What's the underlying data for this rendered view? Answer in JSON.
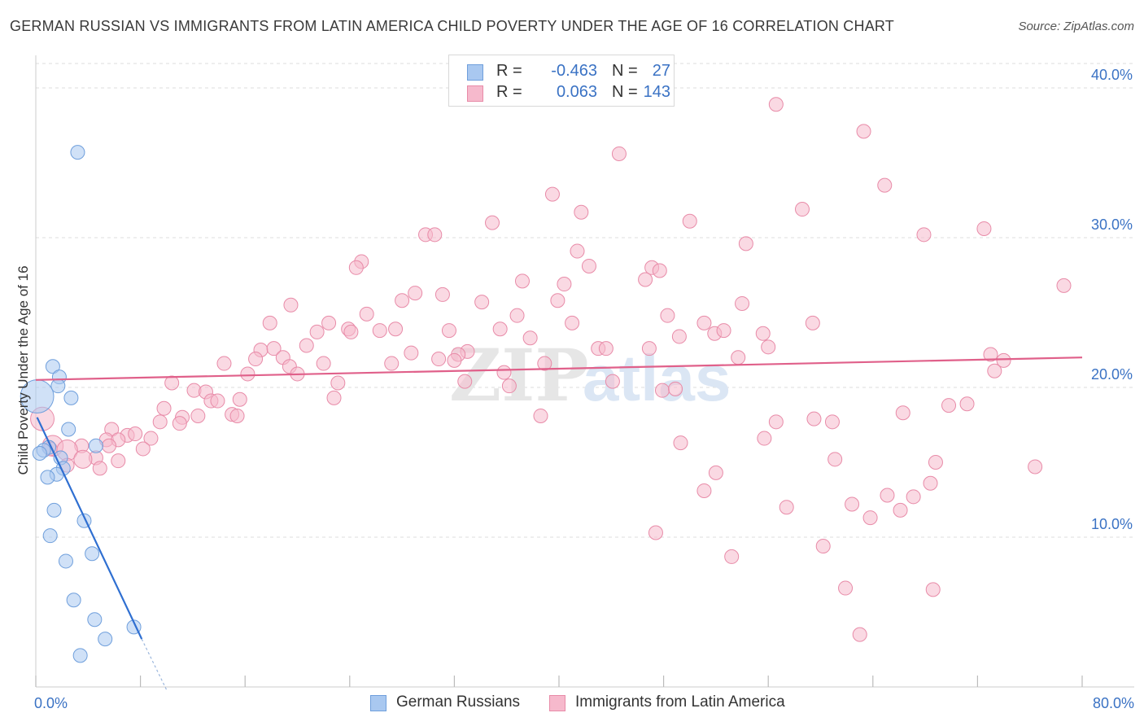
{
  "title": "GERMAN RUSSIAN VS IMMIGRANTS FROM LATIN AMERICA CHILD POVERTY UNDER THE AGE OF 16 CORRELATION CHART",
  "source": "Source: ZipAtlas.com",
  "watermark": {
    "part1": "ZIP",
    "part2": "atlas"
  },
  "colors": {
    "blue_fill": "#a9c8f0",
    "blue_stroke": "#6f9fdc",
    "blue_line": "#2f6fd1",
    "pink_fill": "#f6b9cc",
    "pink_stroke": "#e88ba8",
    "pink_line": "#e0608a",
    "axis_label": "#3a72c4",
    "grid": "#dddddd"
  },
  "legend": {
    "rows": [
      {
        "r_label": "R =",
        "r_value": "-0.463",
        "n_label": "N =",
        "n_value": "27",
        "series": "blue"
      },
      {
        "r_label": "R =",
        "r_value": "0.063",
        "n_label": "N =",
        "n_value": "143",
        "series": "pink"
      }
    ]
  },
  "bottom_legend": {
    "items": [
      {
        "label": "German Russians",
        "series": "blue"
      },
      {
        "label": "Immigrants from Latin America",
        "series": "pink"
      }
    ]
  },
  "chart_data": {
    "type": "scatter",
    "title": "GERMAN RUSSIAN VS IMMIGRANTS FROM LATIN AMERICA CHILD POVERTY UNDER THE AGE OF 16 CORRELATION CHART",
    "xlabel": "",
    "ylabel": "Child Poverty Under the Age of 16",
    "xlim": [
      0,
      80
    ],
    "ylim": [
      0,
      40
    ],
    "x_tick_labels": [
      {
        "value": 0,
        "label": "0.0%"
      },
      {
        "value": 80,
        "label": "80.0%"
      }
    ],
    "x_minor_ticks": [
      0,
      8,
      16,
      24,
      32,
      40,
      48,
      56,
      64,
      72,
      80
    ],
    "y_ticks": [
      {
        "value": 10,
        "label": "10.0%"
      },
      {
        "value": 20,
        "label": "20.0%"
      },
      {
        "value": 30,
        "label": "30.0%"
      },
      {
        "value": 40,
        "label": "40.0%"
      }
    ],
    "grid": true,
    "legend_position": "top-center",
    "series": [
      {
        "name": "German Russians",
        "color": "blue",
        "trend": {
          "x": [
            0.1,
            8.1
          ],
          "y": [
            18.0,
            3.2
          ],
          "dashed_extension": {
            "x": [
              8.1,
              10.0
            ],
            "y": [
              3.2,
              -0.2
            ]
          }
        },
        "points": [
          {
            "x": 3.2,
            "y": 35.7
          },
          {
            "x": 1.3,
            "y": 21.4
          },
          {
            "x": 1.8,
            "y": 20.7
          },
          {
            "x": 1.7,
            "y": 20.1
          },
          {
            "x": 0.1,
            "y": 19.4,
            "s": 2.4
          },
          {
            "x": 2.7,
            "y": 19.3
          },
          {
            "x": 2.5,
            "y": 17.2
          },
          {
            "x": 4.6,
            "y": 16.1
          },
          {
            "x": 1.0,
            "y": 16.0
          },
          {
            "x": 0.6,
            "y": 15.8
          },
          {
            "x": 0.3,
            "y": 15.6
          },
          {
            "x": 1.9,
            "y": 15.3
          },
          {
            "x": 2.1,
            "y": 14.6
          },
          {
            "x": 1.6,
            "y": 14.2
          },
          {
            "x": 0.9,
            "y": 14.0
          },
          {
            "x": 1.4,
            "y": 11.8
          },
          {
            "x": 3.7,
            "y": 11.1
          },
          {
            "x": 1.1,
            "y": 10.1
          },
          {
            "x": 4.3,
            "y": 8.9
          },
          {
            "x": 2.3,
            "y": 8.4
          },
          {
            "x": 2.9,
            "y": 5.8
          },
          {
            "x": 4.5,
            "y": 4.5
          },
          {
            "x": 7.5,
            "y": 4.0
          },
          {
            "x": 5.3,
            "y": 3.2
          },
          {
            "x": 3.4,
            "y": 2.1
          }
        ]
      },
      {
        "name": "Immigrants from Latin America",
        "color": "pink",
        "trend": {
          "x": [
            0,
            80
          ],
          "y": [
            20.5,
            22.0
          ]
        },
        "points": [
          {
            "x": 56.6,
            "y": 38.9
          },
          {
            "x": 63.3,
            "y": 37.1
          },
          {
            "x": 44.6,
            "y": 35.6
          },
          {
            "x": 64.9,
            "y": 33.5
          },
          {
            "x": 39.5,
            "y": 32.9
          },
          {
            "x": 58.6,
            "y": 31.9
          },
          {
            "x": 41.7,
            "y": 31.7
          },
          {
            "x": 50.0,
            "y": 31.1
          },
          {
            "x": 34.9,
            "y": 31.0
          },
          {
            "x": 72.5,
            "y": 30.6
          },
          {
            "x": 67.9,
            "y": 30.2
          },
          {
            "x": 29.8,
            "y": 30.2
          },
          {
            "x": 30.5,
            "y": 30.2
          },
          {
            "x": 54.3,
            "y": 29.6
          },
          {
            "x": 41.4,
            "y": 29.1
          },
          {
            "x": 24.9,
            "y": 28.4
          },
          {
            "x": 24.5,
            "y": 28.0
          },
          {
            "x": 42.3,
            "y": 28.1
          },
          {
            "x": 47.1,
            "y": 28.0
          },
          {
            "x": 47.7,
            "y": 27.8
          },
          {
            "x": 46.6,
            "y": 27.2
          },
          {
            "x": 37.2,
            "y": 27.1
          },
          {
            "x": 40.4,
            "y": 26.9
          },
          {
            "x": 78.6,
            "y": 26.8
          },
          {
            "x": 29.0,
            "y": 26.3
          },
          {
            "x": 31.1,
            "y": 26.2
          },
          {
            "x": 28.0,
            "y": 25.8
          },
          {
            "x": 34.1,
            "y": 25.7
          },
          {
            "x": 39.9,
            "y": 25.8
          },
          {
            "x": 19.5,
            "y": 25.5
          },
          {
            "x": 54.0,
            "y": 25.6
          },
          {
            "x": 25.3,
            "y": 24.9
          },
          {
            "x": 36.8,
            "y": 24.8
          },
          {
            "x": 48.3,
            "y": 24.8
          },
          {
            "x": 17.9,
            "y": 24.3
          },
          {
            "x": 22.4,
            "y": 24.3
          },
          {
            "x": 41.0,
            "y": 24.3
          },
          {
            "x": 51.1,
            "y": 24.3
          },
          {
            "x": 59.4,
            "y": 24.3
          },
          {
            "x": 21.5,
            "y": 23.7
          },
          {
            "x": 23.9,
            "y": 23.9
          },
          {
            "x": 24.1,
            "y": 23.7
          },
          {
            "x": 26.3,
            "y": 23.8
          },
          {
            "x": 27.5,
            "y": 23.9
          },
          {
            "x": 31.6,
            "y": 23.8
          },
          {
            "x": 35.5,
            "y": 23.9
          },
          {
            "x": 51.9,
            "y": 23.6
          },
          {
            "x": 49.2,
            "y": 23.4
          },
          {
            "x": 52.6,
            "y": 23.8
          },
          {
            "x": 55.6,
            "y": 23.6
          },
          {
            "x": 37.8,
            "y": 23.3
          },
          {
            "x": 20.7,
            "y": 22.8
          },
          {
            "x": 17.2,
            "y": 22.5
          },
          {
            "x": 18.2,
            "y": 22.6
          },
          {
            "x": 43.0,
            "y": 22.6
          },
          {
            "x": 43.6,
            "y": 22.6
          },
          {
            "x": 46.9,
            "y": 22.6
          },
          {
            "x": 56.0,
            "y": 22.7
          },
          {
            "x": 28.7,
            "y": 22.3
          },
          {
            "x": 33.0,
            "y": 22.4
          },
          {
            "x": 32.3,
            "y": 22.2
          },
          {
            "x": 16.8,
            "y": 21.9
          },
          {
            "x": 18.9,
            "y": 22.0
          },
          {
            "x": 30.8,
            "y": 21.9
          },
          {
            "x": 32.0,
            "y": 21.8
          },
          {
            "x": 53.7,
            "y": 22.0
          },
          {
            "x": 73.0,
            "y": 22.2
          },
          {
            "x": 74.0,
            "y": 21.8
          },
          {
            "x": 14.4,
            "y": 21.6
          },
          {
            "x": 22.0,
            "y": 21.6
          },
          {
            "x": 27.2,
            "y": 21.6
          },
          {
            "x": 38.9,
            "y": 21.6
          },
          {
            "x": 19.4,
            "y": 21.4
          },
          {
            "x": 16.2,
            "y": 20.9
          },
          {
            "x": 35.8,
            "y": 21.0
          },
          {
            "x": 20.0,
            "y": 20.9
          },
          {
            "x": 73.3,
            "y": 21.1
          },
          {
            "x": 10.4,
            "y": 20.3
          },
          {
            "x": 23.1,
            "y": 20.3
          },
          {
            "x": 32.8,
            "y": 20.4
          },
          {
            "x": 44.1,
            "y": 20.4
          },
          {
            "x": 36.2,
            "y": 20.1
          },
          {
            "x": 12.1,
            "y": 19.8
          },
          {
            "x": 13.0,
            "y": 19.7
          },
          {
            "x": 47.9,
            "y": 19.8
          },
          {
            "x": 48.9,
            "y": 19.9
          },
          {
            "x": 13.4,
            "y": 19.1
          },
          {
            "x": 13.9,
            "y": 19.1
          },
          {
            "x": 15.6,
            "y": 19.2
          },
          {
            "x": 22.8,
            "y": 19.3
          },
          {
            "x": 9.8,
            "y": 18.6
          },
          {
            "x": 71.2,
            "y": 18.9
          },
          {
            "x": 69.8,
            "y": 18.8
          },
          {
            "x": 15.0,
            "y": 18.2
          },
          {
            "x": 15.4,
            "y": 18.1
          },
          {
            "x": 12.4,
            "y": 18.1
          },
          {
            "x": 11.2,
            "y": 18.0
          },
          {
            "x": 38.6,
            "y": 18.1
          },
          {
            "x": 66.3,
            "y": 18.3
          },
          {
            "x": 59.5,
            "y": 17.9
          },
          {
            "x": 0.5,
            "y": 17.9,
            "s": 1.7
          },
          {
            "x": 9.5,
            "y": 17.7
          },
          {
            "x": 11.0,
            "y": 17.6
          },
          {
            "x": 56.6,
            "y": 17.7
          },
          {
            "x": 60.9,
            "y": 17.7
          },
          {
            "x": 5.8,
            "y": 17.2
          },
          {
            "x": 7.0,
            "y": 16.8
          },
          {
            "x": 7.6,
            "y": 16.9
          },
          {
            "x": 5.4,
            "y": 16.5
          },
          {
            "x": 6.3,
            "y": 16.5
          },
          {
            "x": 8.8,
            "y": 16.6
          },
          {
            "x": 55.7,
            "y": 16.6
          },
          {
            "x": 49.3,
            "y": 16.3
          },
          {
            "x": 1.3,
            "y": 16.1,
            "s": 1.5
          },
          {
            "x": 3.5,
            "y": 16.1
          },
          {
            "x": 5.6,
            "y": 16.1
          },
          {
            "x": 2.4,
            "y": 15.8,
            "s": 1.5
          },
          {
            "x": 8.2,
            "y": 15.9
          },
          {
            "x": 1.1,
            "y": 15.9
          },
          {
            "x": 4.6,
            "y": 15.3
          },
          {
            "x": 3.6,
            "y": 15.2,
            "s": 1.3
          },
          {
            "x": 6.3,
            "y": 15.1
          },
          {
            "x": 61.1,
            "y": 15.2
          },
          {
            "x": 68.8,
            "y": 15.0
          },
          {
            "x": 2.4,
            "y": 14.8
          },
          {
            "x": 4.9,
            "y": 14.6
          },
          {
            "x": 76.4,
            "y": 14.7
          },
          {
            "x": 52.0,
            "y": 14.3
          },
          {
            "x": 68.4,
            "y": 13.6
          },
          {
            "x": 51.1,
            "y": 13.1
          },
          {
            "x": 65.1,
            "y": 12.8
          },
          {
            "x": 67.1,
            "y": 12.7
          },
          {
            "x": 62.4,
            "y": 12.2
          },
          {
            "x": 57.4,
            "y": 12.0
          },
          {
            "x": 66.1,
            "y": 11.8
          },
          {
            "x": 63.8,
            "y": 11.3
          },
          {
            "x": 47.4,
            "y": 10.3
          },
          {
            "x": 60.2,
            "y": 9.4
          },
          {
            "x": 53.2,
            "y": 8.7
          },
          {
            "x": 61.9,
            "y": 6.6
          },
          {
            "x": 68.6,
            "y": 6.5
          },
          {
            "x": 63.0,
            "y": 3.5
          }
        ]
      }
    ]
  }
}
